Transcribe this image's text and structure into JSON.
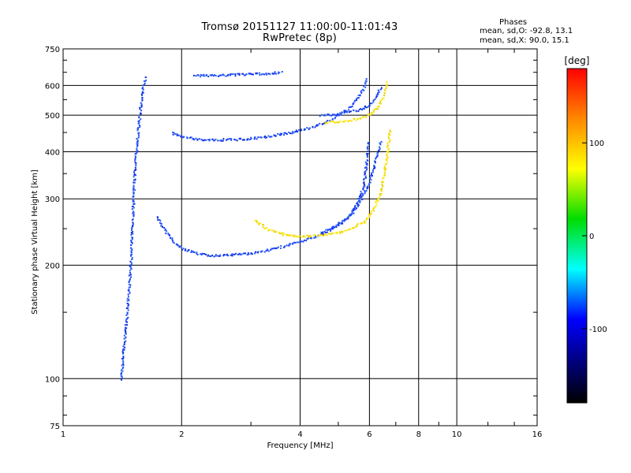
{
  "header": {
    "title_line1": "Tromsø 20151127 11:00:00-11:01:43",
    "title_line2": "RwPretec (8p)",
    "phase_heading": "Phases",
    "phase_line_o": "mean, sd,O: -92.8, 13.1",
    "phase_line_x": "mean, sd,X:  90.0, 15.1"
  },
  "chart_data": {
    "type": "scatter",
    "title": "Tromsø 20151127 11:00:00-11:01:43",
    "subtitle": "RwPretec (8p)",
    "xlabel": "Frequency [MHz]",
    "ylabel": "Stationary phase Virtual Height [km]",
    "xscale": "log",
    "yscale": "log",
    "xlim": [
      1,
      16
    ],
    "ylim": [
      75,
      750
    ],
    "x_ticks": [
      1,
      2,
      4,
      6,
      8,
      10,
      16
    ],
    "x_tick_labels": [
      "1",
      "2",
      "4",
      "6",
      "8",
      "10",
      "16"
    ],
    "y_ticks": [
      75,
      100,
      200,
      300,
      400,
      500,
      600,
      750
    ],
    "y_tick_labels": [
      "75",
      "100",
      "200",
      "300",
      "400",
      "500",
      "600",
      "750"
    ],
    "grid": true,
    "colorbar": {
      "label": "[deg]",
      "range": [
        -180,
        180
      ],
      "ticks": [
        100,
        0,
        -100
      ],
      "tick_labels": [
        "100",
        "0",
        "-100"
      ],
      "colors": [
        "#ff0000",
        "#ff8800",
        "#ffff00",
        "#00dd00",
        "#00ffff",
        "#0000ff",
        "#000000"
      ]
    },
    "series": [
      {
        "name": "O",
        "color": "#1a3cff",
        "phase_mean": -92.8,
        "phase_sd": 13.1
      },
      {
        "name": "X",
        "color": "#f2e600",
        "phase_mean": 90.0,
        "phase_sd": 15.1
      }
    ],
    "traces": [
      {
        "mode": "O",
        "x": [
          1.73,
          1.8,
          1.9,
          2.0,
          2.2,
          2.4,
          2.7,
          3.0,
          3.3,
          3.6,
          4.0,
          4.4,
          4.8,
          5.2,
          5.5,
          5.8,
          5.95
        ],
        "y": [
          270,
          250,
          232,
          222,
          215,
          213,
          214,
          216,
          220,
          225,
          232,
          240,
          250,
          265,
          285,
          330,
          430
        ]
      },
      {
        "mode": "O",
        "x": [
          1.88,
          2.0,
          2.2,
          2.5,
          2.8,
          3.1,
          3.4,
          3.7,
          4.0,
          4.3,
          4.6,
          4.9,
          5.2,
          5.4,
          5.6,
          5.8,
          5.9
        ],
        "y": [
          450,
          440,
          433,
          432,
          433,
          437,
          443,
          450,
          458,
          468,
          480,
          495,
          515,
          535,
          560,
          595,
          630
        ]
      },
      {
        "mode": "O",
        "x": [
          2.15,
          2.4,
          2.7,
          3.0,
          3.3,
          3.6
        ],
        "y": [
          640,
          640,
          643,
          645,
          648,
          652
        ]
      },
      {
        "mode": "O",
        "x": [
          4.5,
          4.8,
          5.1,
          5.4,
          5.7,
          6.0,
          6.2,
          6.4
        ],
        "y": [
          245,
          252,
          262,
          275,
          300,
          335,
          380,
          430
        ]
      },
      {
        "mode": "O",
        "x": [
          4.5,
          4.9,
          5.3,
          5.7,
          6.0,
          6.2,
          6.4
        ],
        "y": [
          500,
          505,
          512,
          520,
          535,
          560,
          600
        ]
      },
      {
        "mode": "X",
        "x": [
          3.05,
          3.3,
          3.6,
          3.9,
          4.2,
          4.6,
          5.0,
          5.4,
          5.8,
          6.1,
          6.4,
          6.6,
          6.75
        ],
        "y": [
          265,
          250,
          243,
          240,
          240,
          242,
          245,
          252,
          262,
          280,
          315,
          380,
          460
        ]
      },
      {
        "mode": "X",
        "x": [
          4.6,
          5.0,
          5.4,
          5.8,
          6.1,
          6.3,
          6.5,
          6.65
        ],
        "y": [
          480,
          483,
          488,
          495,
          510,
          530,
          565,
          620
        ]
      },
      {
        "mode": "O",
        "x": [
          1.4,
          1.42,
          1.45,
          1.48,
          1.5,
          1.52,
          1.55,
          1.58,
          1.6,
          1.62
        ],
        "y": [
          100,
          120,
          150,
          200,
          280,
          380,
          470,
          560,
          610,
          640
        ]
      }
    ]
  }
}
